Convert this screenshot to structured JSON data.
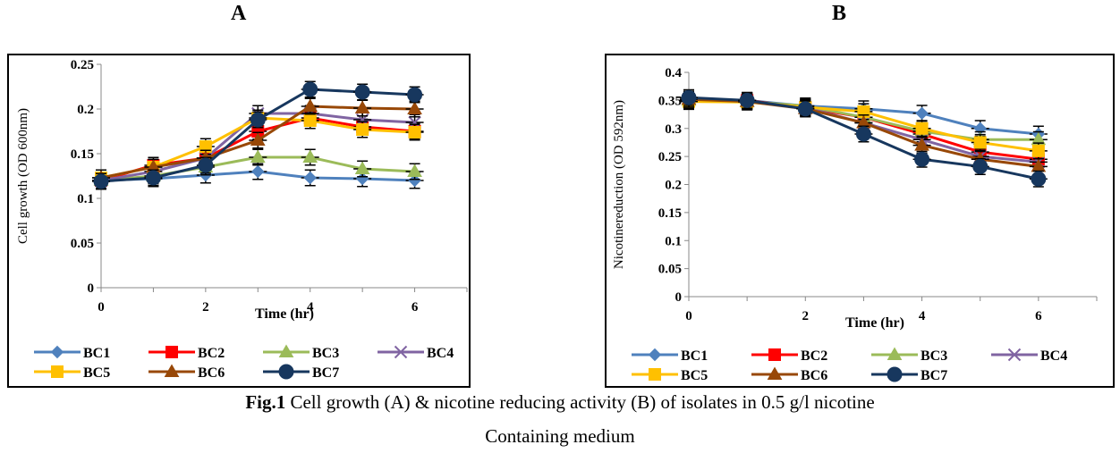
{
  "panels": {
    "a_letter": "A",
    "b_letter": "B"
  },
  "caption": {
    "fig_label": "Fig.1",
    "text": " Cell growth (A) & nicotine reducing activity (B) of isolates in 0.5 g/l nicotine",
    "line2": "Containing medium"
  },
  "series_colors": {
    "BC1": "#4f81bd",
    "BC2": "#ff0000",
    "BC3": "#9bbb59",
    "BC4": "#8064a2",
    "BC5": "#ffc000",
    "BC6": "#984807",
    "BC7": "#17375e"
  },
  "series_markers": {
    "BC1": "diamond",
    "BC2": "square",
    "BC3": "triangle",
    "BC4": "cross",
    "BC5": "square",
    "BC6": "triangle",
    "BC7": "circle"
  },
  "chart_data": [
    {
      "type": "line",
      "panel": "A",
      "xlabel": "Time (hr)",
      "ylabel": "Cell growth (OD 600nm)",
      "xlim": [
        0,
        7
      ],
      "ylim": [
        0,
        0.25
      ],
      "xticks": [
        "0",
        "2",
        "4",
        "6"
      ],
      "yticks": [
        "0",
        "0.05",
        "0.1",
        "0.15",
        "0.2",
        "0.25"
      ],
      "x": [
        0,
        1,
        2,
        3,
        4,
        5,
        6
      ],
      "error_bars": true,
      "legend_position": "bottom",
      "series": [
        {
          "name": "BC1",
          "values": [
            0.12,
            0.122,
            0.126,
            0.13,
            0.123,
            0.122,
            0.12
          ]
        },
        {
          "name": "BC2",
          "values": [
            0.12,
            0.137,
            0.145,
            0.175,
            0.19,
            0.18,
            0.175
          ]
        },
        {
          "name": "BC3",
          "values": [
            0.12,
            0.125,
            0.135,
            0.146,
            0.146,
            0.133,
            0.13
          ]
        },
        {
          "name": "BC4",
          "values": [
            0.12,
            0.13,
            0.145,
            0.195,
            0.195,
            0.188,
            0.185
          ]
        },
        {
          "name": "BC5",
          "values": [
            0.123,
            0.135,
            0.158,
            0.19,
            0.187,
            0.177,
            0.174
          ]
        },
        {
          "name": "BC6",
          "values": [
            0.123,
            0.135,
            0.145,
            0.165,
            0.203,
            0.201,
            0.2
          ]
        },
        {
          "name": "BC7",
          "values": [
            0.119,
            0.123,
            0.137,
            0.188,
            0.222,
            0.219,
            0.216
          ]
        }
      ]
    },
    {
      "type": "line",
      "panel": "B",
      "xlabel": "Time (hr)",
      "ylabel": "Nicotinereduction (OD 592nm)",
      "xlim": [
        0,
        7
      ],
      "ylim": [
        0,
        0.4
      ],
      "xticks": [
        "0",
        "2",
        "4",
        "6"
      ],
      "yticks": [
        "0",
        "0.05",
        "0.1",
        "0.15",
        "0.2",
        "0.25",
        "0.3",
        "0.35",
        "0.4"
      ],
      "x": [
        0,
        1,
        2,
        3,
        4,
        5,
        6
      ],
      "error_bars": true,
      "legend_position": "bottom",
      "series": [
        {
          "name": "BC1",
          "values": [
            0.352,
            0.35,
            0.34,
            0.335,
            0.327,
            0.3,
            0.29
          ]
        },
        {
          "name": "BC2",
          "values": [
            0.352,
            0.35,
            0.337,
            0.32,
            0.29,
            0.258,
            0.245
          ]
        },
        {
          "name": "BC3",
          "values": [
            0.35,
            0.348,
            0.34,
            0.32,
            0.295,
            0.28,
            0.28
          ]
        },
        {
          "name": "BC4",
          "values": [
            0.35,
            0.348,
            0.337,
            0.31,
            0.28,
            0.25,
            0.24
          ]
        },
        {
          "name": "BC5",
          "values": [
            0.348,
            0.347,
            0.338,
            0.33,
            0.3,
            0.275,
            0.26
          ]
        },
        {
          "name": "BC6",
          "values": [
            0.352,
            0.348,
            0.335,
            0.31,
            0.27,
            0.245,
            0.232
          ]
        },
        {
          "name": "BC7",
          "values": [
            0.355,
            0.35,
            0.335,
            0.29,
            0.245,
            0.232,
            0.21
          ]
        }
      ]
    }
  ]
}
